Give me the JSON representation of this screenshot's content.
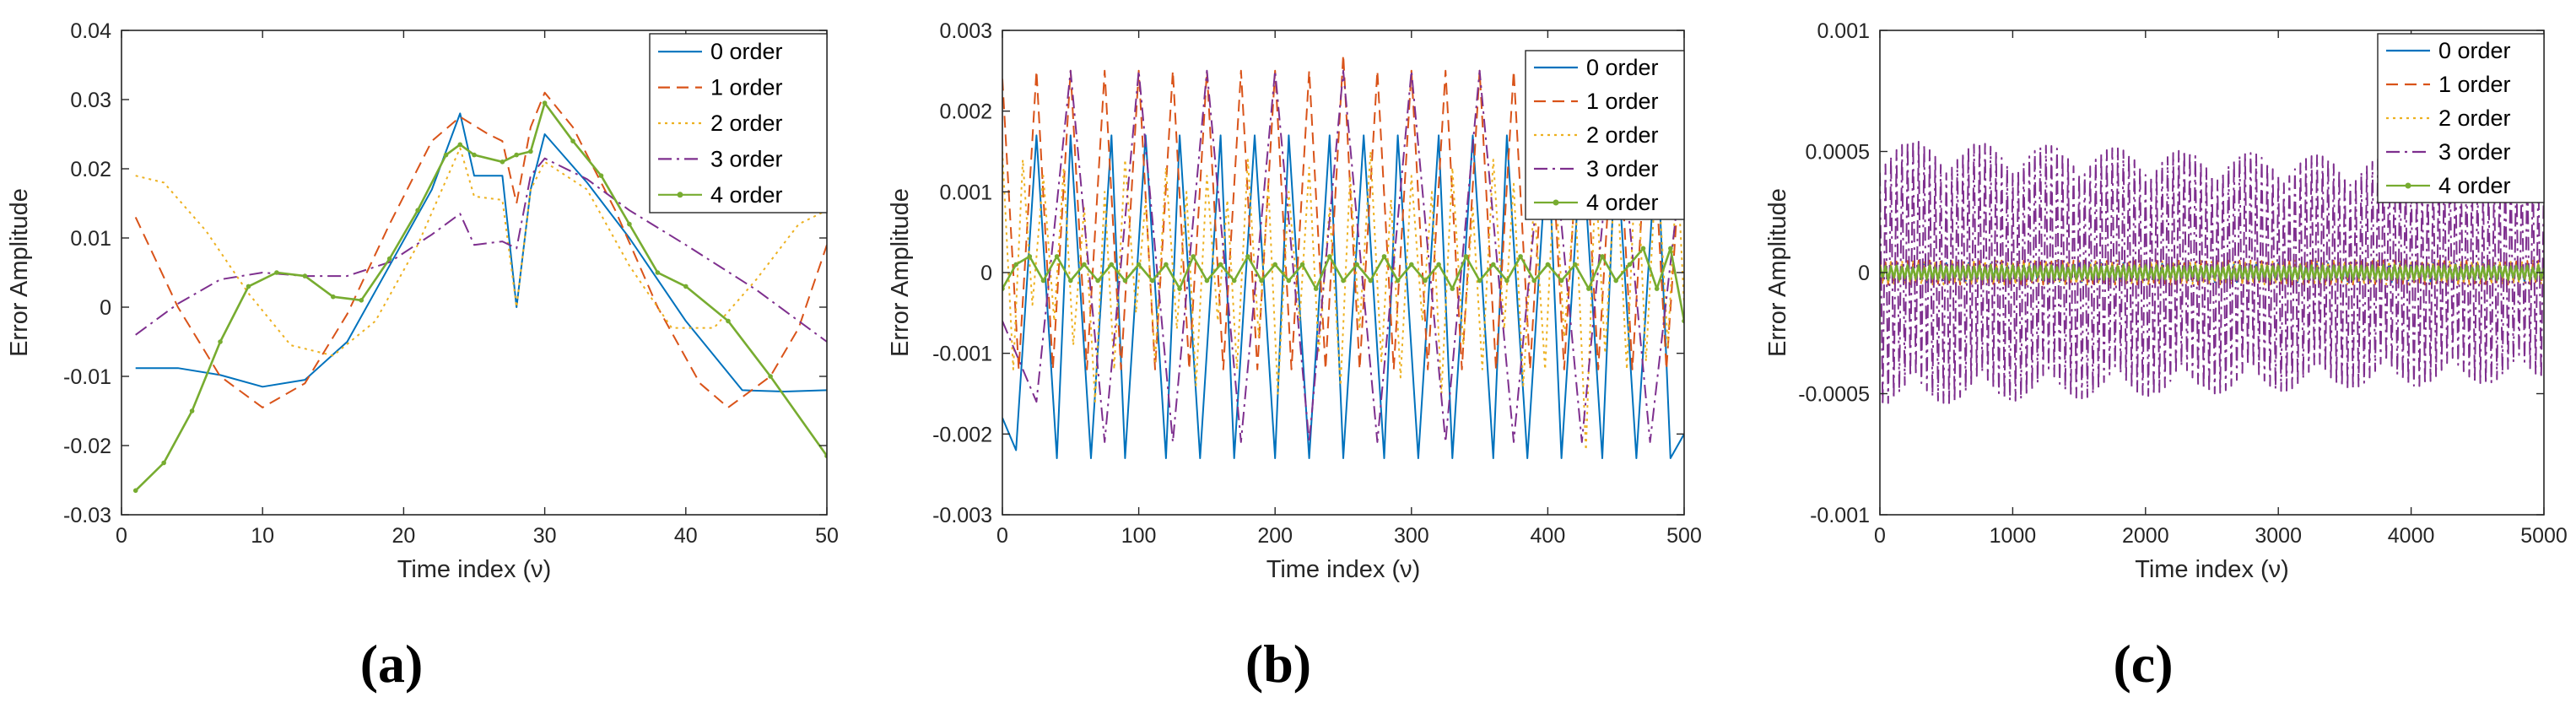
{
  "chart_data": [
    {
      "type": "line",
      "panel_label": "(a)",
      "xlabel": "Time index (ν)",
      "ylabel": "Error Amplitude",
      "xlim": [
        0,
        50
      ],
      "ylim": [
        -0.03,
        0.04
      ],
      "xticks": [
        "0",
        "10",
        "20",
        "30",
        "40",
        "50"
      ],
      "yticks": [
        "-0.03",
        "-0.02",
        "-0.01",
        "0",
        "0.01",
        "0.02",
        "0.03",
        "0.04"
      ],
      "legend": [
        "0 order",
        "1 order",
        "2 order",
        "3 order",
        "4 order"
      ],
      "series": [
        {
          "name": "0 order",
          "color": "#0072BD",
          "style": "solid",
          "x": [
            1,
            4,
            7,
            10,
            13,
            16,
            19,
            22,
            24,
            25,
            27,
            28,
            29,
            30,
            33,
            36,
            40,
            44,
            47,
            50
          ],
          "y": [
            -0.0088,
            -0.0088,
            -0.0098,
            -0.0115,
            -0.0105,
            -0.005,
            0.006,
            0.017,
            0.028,
            0.019,
            0.019,
            0.0,
            0.017,
            0.025,
            0.018,
            0.01,
            -0.002,
            -0.012,
            -0.0122,
            -0.012
          ]
        },
        {
          "name": "1 order",
          "color": "#D95319",
          "style": "dashed",
          "x": [
            1,
            4,
            7,
            10,
            13,
            16,
            19,
            22,
            24,
            26,
            27,
            28,
            29,
            30,
            32,
            35,
            38,
            41,
            43,
            46,
            48,
            50
          ],
          "y": [
            0.013,
            0.0,
            -0.01,
            -0.0145,
            -0.011,
            -0.001,
            0.012,
            0.024,
            0.0275,
            0.025,
            0.024,
            0.015,
            0.026,
            0.031,
            0.026,
            0.014,
            0.0,
            -0.011,
            -0.0145,
            -0.01,
            -0.003,
            0.009
          ]
        },
        {
          "name": "2 order",
          "color": "#EDB120",
          "style": "dotted",
          "x": [
            1,
            3,
            6,
            9,
            12,
            15,
            18,
            21,
            24,
            25,
            27,
            28,
            29,
            30,
            33,
            36,
            39,
            42,
            45,
            48,
            50
          ],
          "y": [
            0.019,
            0.018,
            0.011,
            0.002,
            -0.0055,
            -0.007,
            -0.002,
            0.009,
            0.023,
            0.016,
            0.0155,
            0.0,
            0.017,
            0.021,
            0.017,
            0.006,
            -0.003,
            -0.003,
            0.004,
            0.012,
            0.014
          ]
        },
        {
          "name": "3 order",
          "color": "#7E2F8E",
          "style": "dashdot",
          "x": [
            1,
            4,
            7,
            10,
            13,
            16,
            19,
            22,
            24,
            25,
            27,
            28,
            29,
            30,
            33,
            36,
            40,
            45,
            50
          ],
          "y": [
            -0.004,
            0.0005,
            0.004,
            0.005,
            0.0045,
            0.0045,
            0.0065,
            0.0105,
            0.0135,
            0.009,
            0.0095,
            0.0085,
            0.019,
            0.0215,
            0.0185,
            0.014,
            0.009,
            0.0025,
            -0.005
          ]
        },
        {
          "name": "4 order",
          "color": "#77AC30",
          "style": "solid-marker",
          "x": [
            1,
            3,
            5,
            7,
            9,
            11,
            13,
            15,
            17,
            19,
            21,
            23,
            24,
            25,
            27,
            28,
            29,
            30,
            32,
            34,
            36,
            38,
            40,
            43,
            46,
            50
          ],
          "y": [
            -0.0265,
            -0.0225,
            -0.015,
            -0.005,
            0.003,
            0.005,
            0.0045,
            0.0015,
            0.001,
            0.007,
            0.014,
            0.022,
            0.0235,
            0.022,
            0.021,
            0.022,
            0.0225,
            0.0295,
            0.024,
            0.019,
            0.012,
            0.005,
            0.003,
            -0.002,
            -0.01,
            -0.0215
          ]
        }
      ]
    },
    {
      "type": "line",
      "panel_label": "(b)",
      "xlabel": "Time index (ν)",
      "ylabel": "Error Amplitude",
      "xlim": [
        0,
        500
      ],
      "ylim": [
        -0.003,
        0.003
      ],
      "xticks": [
        "0",
        "100",
        "200",
        "300",
        "400",
        "500"
      ],
      "yticks": [
        "-0.003",
        "-0.002",
        "-0.001",
        "0",
        "0.001",
        "0.002",
        "0.003"
      ],
      "legend": [
        "0 order",
        "1 order",
        "2 order",
        "3 order",
        "4 order"
      ],
      "series": [
        {
          "name": "0 order",
          "color": "#0072BD",
          "style": "solid",
          "x": [
            0,
            10,
            25,
            40,
            50,
            65,
            80,
            90,
            105,
            120,
            130,
            145,
            160,
            170,
            185,
            200,
            210,
            225,
            240,
            250,
            265,
            280,
            290,
            305,
            320,
            330,
            345,
            360,
            370,
            385,
            400,
            410,
            425,
            440,
            450,
            465,
            480,
            490,
            500
          ],
          "y": [
            -0.0018,
            -0.0022,
            0.0017,
            -0.0023,
            0.0017,
            -0.0023,
            0.0017,
            -0.0023,
            0.0017,
            -0.0023,
            0.0017,
            -0.0023,
            0.0017,
            -0.0023,
            0.0017,
            -0.0023,
            0.0017,
            -0.0023,
            0.0017,
            -0.0023,
            0.0017,
            -0.0023,
            0.0017,
            -0.0023,
            0.0017,
            -0.0023,
            0.0017,
            -0.0023,
            0.0017,
            -0.0023,
            0.0017,
            -0.0023,
            0.0017,
            -0.0023,
            0.0017,
            -0.0023,
            0.0017,
            -0.0023,
            -0.002
          ]
        },
        {
          "name": "1 order",
          "color": "#D95319",
          "style": "dashed",
          "x": [
            0,
            12,
            25,
            37,
            50,
            62,
            75,
            87,
            100,
            112,
            125,
            137,
            150,
            162,
            175,
            187,
            200,
            212,
            225,
            237,
            250,
            262,
            275,
            287,
            300,
            312,
            325,
            337,
            350,
            362,
            375,
            387,
            400,
            412,
            425,
            437,
            450,
            462,
            475,
            487,
            500
          ],
          "y": [
            0.0024,
            -0.0012,
            0.0025,
            -0.0012,
            0.0025,
            -0.0012,
            0.0025,
            -0.0012,
            0.0025,
            -0.0012,
            0.0025,
            -0.0012,
            0.0025,
            -0.0012,
            0.0025,
            -0.0012,
            0.0025,
            -0.0012,
            0.0025,
            -0.0012,
            0.0027,
            -0.0012,
            0.0025,
            -0.0012,
            0.0025,
            -0.0012,
            0.0025,
            -0.0012,
            0.0025,
            -0.0012,
            0.0025,
            -0.0012,
            0.0025,
            -0.0012,
            0.0025,
            -0.0012,
            0.0025,
            -0.0012,
            0.0025,
            -0.0012,
            0.0021
          ]
        },
        {
          "name": "2 order",
          "color": "#EDB120",
          "style": "dotted",
          "x": [
            0,
            8,
            15,
            22,
            30,
            38,
            45,
            52,
            60,
            68,
            75,
            82,
            90,
            98,
            105,
            112,
            120,
            128,
            135,
            142,
            150,
            158,
            165,
            172,
            180,
            188,
            195,
            202,
            210,
            218,
            225,
            232,
            240,
            248,
            255,
            262,
            270,
            278,
            285,
            292,
            300,
            308,
            315,
            322,
            330,
            338,
            345,
            352,
            360,
            368,
            375,
            382,
            390,
            398,
            405,
            412,
            420,
            428,
            435,
            442,
            450,
            458,
            465,
            472,
            480,
            488,
            495,
            500
          ],
          "y": [
            0.0015,
            -0.0012,
            0.0014,
            -0.0004,
            0.0012,
            -0.0006,
            0.0013,
            -0.0009,
            0.0008,
            -0.0016,
            0.001,
            -0.0012,
            0.0014,
            -0.0005,
            0.0009,
            -0.0011,
            0.0013,
            -0.0007,
            0.001,
            -0.0014,
            0.0012,
            -0.0006,
            0.0009,
            -0.0012,
            0.0014,
            -0.0008,
            0.0011,
            -0.0015,
            0.001,
            -0.0006,
            0.0013,
            -0.001,
            0.0008,
            -0.0014,
            0.0012,
            -0.0007,
            0.0015,
            -0.0011,
            0.0009,
            -0.0013,
            0.0012,
            -0.0006,
            0.001,
            -0.0015,
            0.0013,
            -0.0009,
            0.0008,
            -0.0012,
            0.0014,
            -0.0007,
            0.0011,
            -0.0014,
            0.0009,
            -0.0012,
            0.0013,
            -0.0008,
            0.001,
            -0.0022,
            0.0012,
            -0.001,
            0.0014,
            -0.0012,
            0.0016,
            -0.0011,
            0.0015,
            -0.0009,
            0.0013,
            -0.0004
          ]
        },
        {
          "name": "3 order",
          "color": "#7E2F8E",
          "style": "dashdot",
          "x": [
            0,
            25,
            50,
            75,
            100,
            125,
            150,
            175,
            200,
            225,
            250,
            275,
            300,
            325,
            350,
            375,
            400,
            425,
            450,
            475,
            500
          ],
          "y": [
            -0.0006,
            -0.0016,
            0.0025,
            -0.0021,
            0.0025,
            -0.0021,
            0.0025,
            -0.0021,
            0.0025,
            -0.0021,
            0.0025,
            -0.0021,
            0.0025,
            -0.0021,
            0.0025,
            -0.0021,
            0.0024,
            -0.0021,
            0.0024,
            -0.0021,
            0.0016
          ]
        },
        {
          "name": "4 order",
          "color": "#77AC30",
          "style": "solid-marker",
          "x": [
            0,
            10,
            20,
            30,
            40,
            50,
            60,
            70,
            80,
            90,
            100,
            110,
            120,
            130,
            140,
            150,
            160,
            170,
            180,
            190,
            200,
            210,
            220,
            230,
            240,
            250,
            260,
            270,
            280,
            290,
            300,
            310,
            320,
            330,
            340,
            350,
            360,
            370,
            380,
            390,
            400,
            410,
            420,
            430,
            440,
            450,
            460,
            470,
            480,
            490,
            500
          ],
          "y": [
            -0.0002,
            0.0001,
            0.0002,
            -0.0001,
            0.0002,
            -0.0001,
            0.0001,
            -0.0001,
            0.0001,
            -0.0001,
            0.0001,
            -0.0001,
            0.0001,
            -0.0002,
            0.0002,
            -0.0001,
            0.0001,
            -0.0001,
            0.0002,
            -0.0001,
            0.0001,
            -0.0001,
            0.0001,
            -0.0002,
            0.0002,
            -0.0001,
            0.0001,
            -0.0001,
            0.0002,
            -0.0001,
            0.0001,
            -0.0001,
            0.0001,
            -0.0002,
            0.0002,
            -0.0001,
            0.0001,
            -0.0001,
            0.0002,
            -0.0001,
            0.0001,
            -0.0001,
            0.0001,
            -0.0002,
            0.0002,
            -0.0001,
            0.0001,
            0.0003,
            -0.0002,
            0.0003,
            -0.0006
          ]
        }
      ]
    },
    {
      "type": "line",
      "panel_label": "(c)",
      "xlabel": "Time index (ν)",
      "ylabel": "Error Amplitude",
      "xlim": [
        0,
        5000
      ],
      "ylim": [
        -0.001,
        0.001
      ],
      "xticks": [
        "0",
        "1000",
        "2000",
        "3000",
        "4000",
        "5000"
      ],
      "yticks": [
        "-0.001",
        "-0.0005",
        "0",
        "0.0005",
        "0.001"
      ],
      "legend": [
        "0 order",
        "1 order",
        "2 order",
        "3 order",
        "4 order"
      ],
      "series": [
        {
          "name": "0 order",
          "color": "#0072BD",
          "style": "solid",
          "amplitude": 4e-05,
          "x_range": [
            0,
            5000
          ]
        },
        {
          "name": "1 order",
          "color": "#D95319",
          "style": "dashed",
          "amplitude": 5e-05,
          "x_range": [
            0,
            5000
          ]
        },
        {
          "name": "2 order",
          "color": "#EDB120",
          "style": "dotted",
          "amplitude": 5e-05,
          "x_range": [
            0,
            5000
          ]
        },
        {
          "name": "3 order",
          "color": "#7E2F8E",
          "style": "dashdot",
          "amplitude_envelope": [
            0.00055,
            0.00045
          ],
          "x_range": [
            0,
            5000
          ]
        },
        {
          "name": "4 order",
          "color": "#77AC30",
          "style": "solid-marker",
          "amplitude": 3e-05,
          "x_range": [
            0,
            5000
          ]
        }
      ]
    }
  ]
}
